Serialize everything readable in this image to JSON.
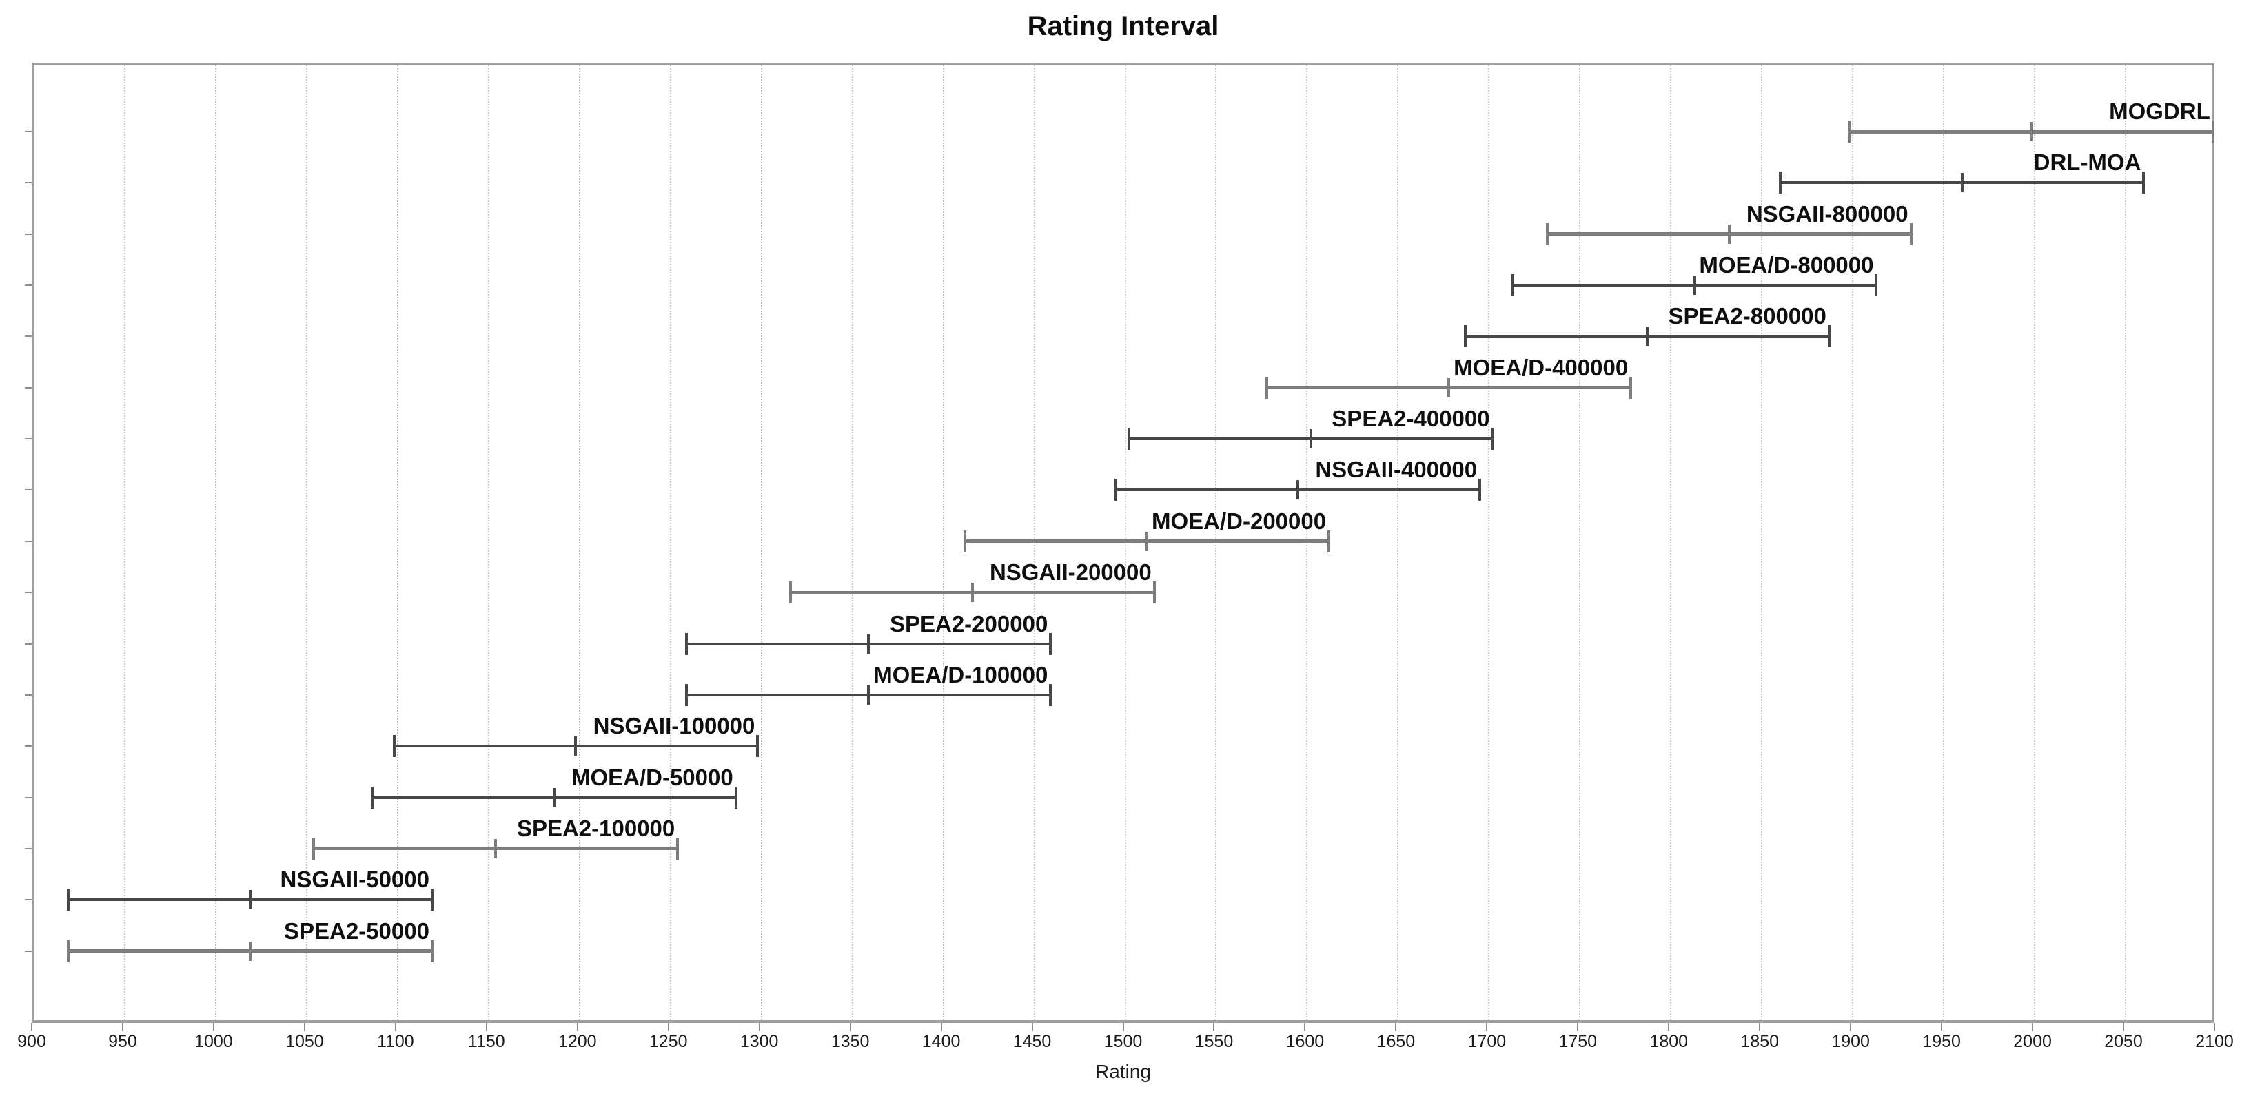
{
  "title": "Rating Interval",
  "x_axis": {
    "label": "Rating",
    "min": 900,
    "max": 2100,
    "tick_step": 50,
    "tick_labels": [
      "900",
      "950",
      "1000",
      "1050",
      "1100",
      "1150",
      "1200",
      "1250",
      "1300",
      "1350",
      "1400",
      "1450",
      "1500",
      "1550",
      "1600",
      "1650",
      "1700",
      "1750",
      "1800",
      "1850",
      "1900",
      "1950",
      "2000",
      "2050",
      "2100"
    ]
  },
  "colors": {
    "background": "#ffffff",
    "plot_border": "#9e9e9e",
    "gridline": "#c9c9c9",
    "tick": "#8c8c8c",
    "text": "#0f0f0f",
    "line_gray": "#7d7d7d",
    "line_dark": "#474747"
  },
  "chart_data": {
    "type": "scatter",
    "style": "horizontal-interval-errorbar",
    "title": "Rating Interval",
    "xlabel": "Rating",
    "xlim": [
      900,
      2100
    ],
    "grid": "vertical-dotted-every-50",
    "legend": "none",
    "interval_half_width": 100,
    "series": [
      {
        "name": "MOGDRL",
        "mean": 1998,
        "low": 1898,
        "high": 2098,
        "tone": "gray"
      },
      {
        "name": "DRL-MOA",
        "mean": 1960,
        "low": 1860,
        "high": 2060,
        "tone": "dark"
      },
      {
        "name": "NSGAII-800000",
        "mean": 1832,
        "low": 1732,
        "high": 1932,
        "tone": "gray"
      },
      {
        "name": "MOEA/D-800000",
        "mean": 1813,
        "low": 1713,
        "high": 1913,
        "tone": "dark"
      },
      {
        "name": "SPEA2-800000",
        "mean": 1787,
        "low": 1687,
        "high": 1887,
        "tone": "dark"
      },
      {
        "name": "MOEA/D-400000",
        "mean": 1678,
        "low": 1578,
        "high": 1778,
        "tone": "gray"
      },
      {
        "name": "SPEA2-400000",
        "mean": 1602,
        "low": 1502,
        "high": 1702,
        "tone": "dark"
      },
      {
        "name": "NSGAII-400000",
        "mean": 1595,
        "low": 1495,
        "high": 1695,
        "tone": "dark"
      },
      {
        "name": "MOEA/D-200000",
        "mean": 1512,
        "low": 1412,
        "high": 1612,
        "tone": "gray"
      },
      {
        "name": "NSGAII-200000",
        "mean": 1416,
        "low": 1316,
        "high": 1516,
        "tone": "gray"
      },
      {
        "name": "SPEA2-200000",
        "mean": 1359,
        "low": 1259,
        "high": 1459,
        "tone": "dark"
      },
      {
        "name": "MOEA/D-100000",
        "mean": 1359,
        "low": 1259,
        "high": 1459,
        "tone": "dark"
      },
      {
        "name": "NSGAII-100000",
        "mean": 1198,
        "low": 1098,
        "high": 1298,
        "tone": "dark"
      },
      {
        "name": "MOEA/D-50000",
        "mean": 1186,
        "low": 1086,
        "high": 1286,
        "tone": "dark"
      },
      {
        "name": "SPEA2-100000",
        "mean": 1154,
        "low": 1054,
        "high": 1254,
        "tone": "gray"
      },
      {
        "name": "NSGAII-50000",
        "mean": 1019,
        "low": 919,
        "high": 1119,
        "tone": "dark"
      },
      {
        "name": "SPEA2-50000",
        "mean": 1019,
        "low": 919,
        "high": 1119,
        "tone": "gray"
      }
    ]
  }
}
